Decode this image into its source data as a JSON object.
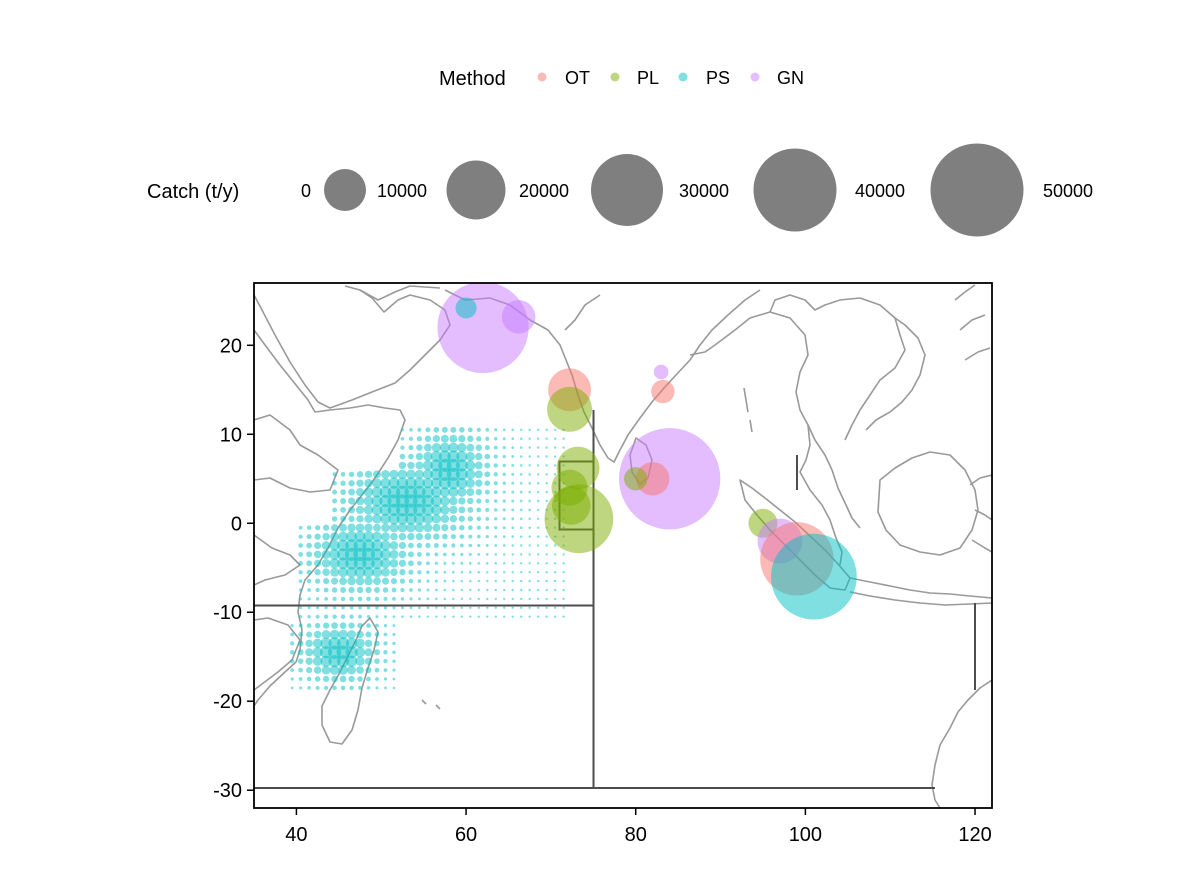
{
  "legend": {
    "method_title": "Method",
    "methods": [
      {
        "label": "OT",
        "color": "#F8766D"
      },
      {
        "label": "PL",
        "color": "#7CAE00"
      },
      {
        "label": "PS",
        "color": "#00BFC4"
      },
      {
        "label": "GN",
        "color": "#C77CFF"
      }
    ],
    "catch_title": "Catch (t/y)",
    "catch_sizes": [
      {
        "label": "0",
        "value": 0
      },
      {
        "label": "10000",
        "value": 10000
      },
      {
        "label": "20000",
        "value": 20000
      },
      {
        "label": "30000",
        "value": 30000
      },
      {
        "label": "40000",
        "value": 40000
      },
      {
        "label": "50000",
        "value": 50000
      }
    ]
  },
  "chart_data": {
    "type": "scatter",
    "xlim": [
      35,
      122
    ],
    "ylim": [
      -32,
      27
    ],
    "x_ticks": [
      "40",
      "60",
      "80",
      "100",
      "120"
    ],
    "y_ticks": [
      "20",
      "10",
      "0",
      "-10",
      "-20",
      "-30"
    ],
    "x_tick_values": [
      40,
      60,
      80,
      100,
      120
    ],
    "y_tick_values": [
      20,
      10,
      0,
      -10,
      -20,
      -30
    ],
    "point_opacity": 0.5,
    "points": [
      {
        "method": "GN",
        "lon": 62,
        "lat": 22,
        "catch": 48000
      },
      {
        "method": "GN",
        "lon": 66.2,
        "lat": 23.2,
        "catch": 5000
      },
      {
        "method": "PS",
        "lon": 60,
        "lat": 24.2,
        "catch": 1500
      },
      {
        "method": "OT",
        "lon": 72.2,
        "lat": 15,
        "catch": 9000
      },
      {
        "method": "PL",
        "lon": 72.2,
        "lat": 12.8,
        "catch": 10000
      },
      {
        "method": "GN",
        "lon": 83,
        "lat": 17,
        "catch": 500
      },
      {
        "method": "OT",
        "lon": 83.2,
        "lat": 14.8,
        "catch": 2000
      },
      {
        "method": "PL",
        "lon": 73.2,
        "lat": 6.2,
        "catch": 9000
      },
      {
        "method": "PL",
        "lon": 72.2,
        "lat": 4,
        "catch": 6000
      },
      {
        "method": "PL",
        "lon": 72.4,
        "lat": 2,
        "catch": 7000
      },
      {
        "method": "PL",
        "lon": 73.3,
        "lat": 0.5,
        "catch": 26000
      },
      {
        "method": "GN",
        "lon": 84,
        "lat": 5,
        "catch": 60000
      },
      {
        "method": "OT",
        "lon": 82,
        "lat": 5,
        "catch": 5000
      },
      {
        "method": "PL",
        "lon": 80,
        "lat": 5,
        "catch": 2000
      },
      {
        "method": "PL",
        "lon": 95,
        "lat": 0,
        "catch": 3500
      },
      {
        "method": "GN",
        "lon": 97,
        "lat": -2,
        "catch": 10000
      },
      {
        "method": "OT",
        "lon": 99,
        "lat": -4,
        "catch": 30000
      },
      {
        "method": "PS",
        "lon": 101,
        "lat": -6,
        "catch": 42000
      }
    ],
    "purse_seine_grid": {
      "method": "PS",
      "clusters": [
        {
          "lon": 53,
          "lat": 2.5,
          "spread_lon": 5,
          "spread_lat": 3.2
        },
        {
          "lon": 58,
          "lat": 6,
          "spread_lon": 3,
          "spread_lat": 3
        },
        {
          "lon": 47.5,
          "lat": -3.5,
          "spread_lon": 4,
          "spread_lat": 2.8
        },
        {
          "lon": 45,
          "lat": -14.5,
          "spread_lon": 3,
          "spread_lat": 2.2
        }
      ]
    }
  }
}
